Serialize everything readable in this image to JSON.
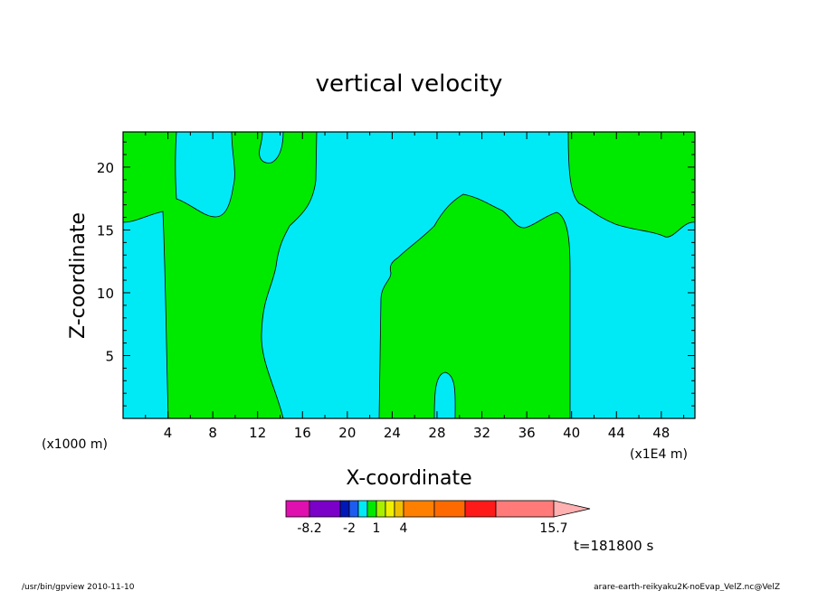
{
  "chart_data": {
    "type": "contour",
    "title": "vertical velocity",
    "xlabel": "X-coordinate",
    "ylabel": "Z-coordinate",
    "x_scale_note": "(x1000 m)",
    "x_unit_note": "(x1E4 m)",
    "x_ticks": [
      "4",
      "8",
      "12",
      "16",
      "20",
      "24",
      "28",
      "32",
      "36",
      "40",
      "44",
      "48"
    ],
    "y_ticks": [
      "5",
      "10",
      "15",
      "20"
    ],
    "xlim": [
      0,
      51
    ],
    "ylim": [
      0,
      22.8
    ],
    "time_label": "t=181800 s",
    "colorbar": {
      "bins": [
        {
          "color": "#e00fb0"
        },
        {
          "color": "#7b00c8"
        },
        {
          "color": "#0018b8"
        },
        {
          "color": "#1e5cf0"
        },
        {
          "color": "#00eaf5"
        },
        {
          "color": "#00ea00"
        },
        {
          "color": "#a8f000"
        },
        {
          "color": "#f0f000"
        },
        {
          "color": "#f0c000"
        },
        {
          "color": "#ff8000"
        },
        {
          "color": "#ff6a00"
        },
        {
          "color": "#ff1a1a"
        },
        {
          "color": "#ff7a78"
        },
        {
          "color": "#ffb0b0"
        }
      ],
      "tick_labels": [
        "-8.2",
        "-2",
        "1",
        "4",
        "15.7"
      ]
    },
    "regions": {
      "background_color": "#00eaf5",
      "positive_color": "#00ea00"
    }
  },
  "footer": {
    "left": "/usr/bin/gpview  2010-11-10",
    "right": "arare-earth-reikyaku2K-noEvap_VelZ.nc@VelZ"
  }
}
